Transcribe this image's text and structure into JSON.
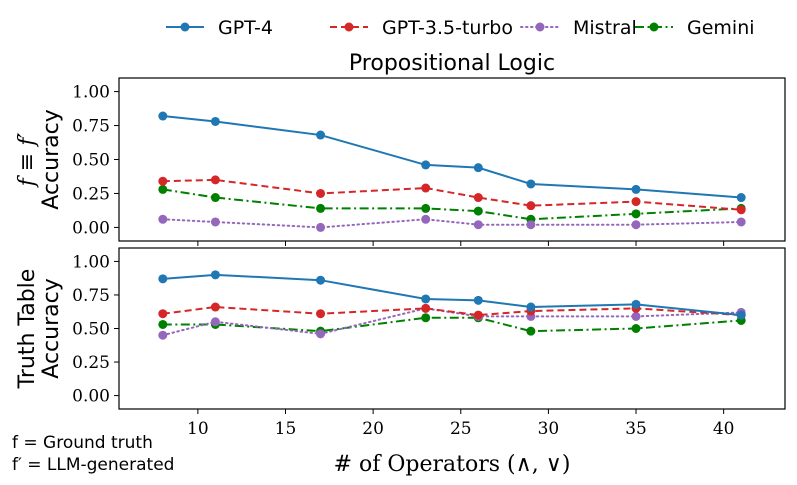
{
  "chart_data": {
    "type": "line",
    "title": "Propositional Logic",
    "xlabel": "# of Operators (∧, ∨)",
    "x": [
      8,
      11,
      17,
      23,
      26,
      29,
      35,
      41
    ],
    "xlim": [
      5.5,
      43.5
    ],
    "xticks": [
      10,
      15,
      20,
      25,
      30,
      35,
      40
    ],
    "ylim": [
      -0.1,
      1.1
    ],
    "yticks": [
      "0.00",
      "0.25",
      "0.50",
      "0.75",
      "1.00"
    ],
    "legend_position": "top",
    "grid": false,
    "series_style": [
      {
        "name": "GPT-4",
        "color": "#1f77b4",
        "dash": "solid"
      },
      {
        "name": "GPT-3.5-turbo",
        "color": "#d62728",
        "dash": "dashed"
      },
      {
        "name": "Mistral",
        "color": "#9467bd",
        "dash": "dotted"
      },
      {
        "name": "Gemini",
        "color": "#008000",
        "dash": "dashdot"
      }
    ],
    "panels": [
      {
        "ylabel_line1": "f ≡ f′",
        "ylabel_line2": "Accuracy",
        "series": [
          {
            "name": "GPT-4",
            "values": [
              0.82,
              0.78,
              0.68,
              0.46,
              0.44,
              0.32,
              0.28,
              0.22
            ]
          },
          {
            "name": "GPT-3.5-turbo",
            "values": [
              0.34,
              0.35,
              0.25,
              0.29,
              0.22,
              0.16,
              0.19,
              0.13
            ]
          },
          {
            "name": "Mistral",
            "values": [
              0.06,
              0.04,
              0.0,
              0.06,
              0.02,
              0.02,
              0.02,
              0.04
            ]
          },
          {
            "name": "Gemini",
            "values": [
              0.28,
              0.22,
              0.14,
              0.14,
              0.12,
              0.06,
              0.1,
              0.14
            ]
          }
        ]
      },
      {
        "ylabel_line1": "Truth Table",
        "ylabel_line2": "Accuracy",
        "series": [
          {
            "name": "GPT-4",
            "values": [
              0.87,
              0.9,
              0.86,
              0.72,
              0.71,
              0.66,
              0.68,
              0.6
            ]
          },
          {
            "name": "GPT-3.5-turbo",
            "values": [
              0.61,
              0.66,
              0.61,
              0.65,
              0.6,
              0.63,
              0.65,
              0.6
            ]
          },
          {
            "name": "Mistral",
            "values": [
              0.45,
              0.55,
              0.46,
              0.65,
              0.59,
              0.59,
              0.59,
              0.62
            ]
          },
          {
            "name": "Gemini",
            "values": [
              0.53,
              0.53,
              0.48,
              0.58,
              0.58,
              0.48,
              0.5,
              0.56
            ]
          }
        ]
      }
    ],
    "notes": [
      "f = Ground truth",
      "f′ = LLM-generated"
    ]
  }
}
